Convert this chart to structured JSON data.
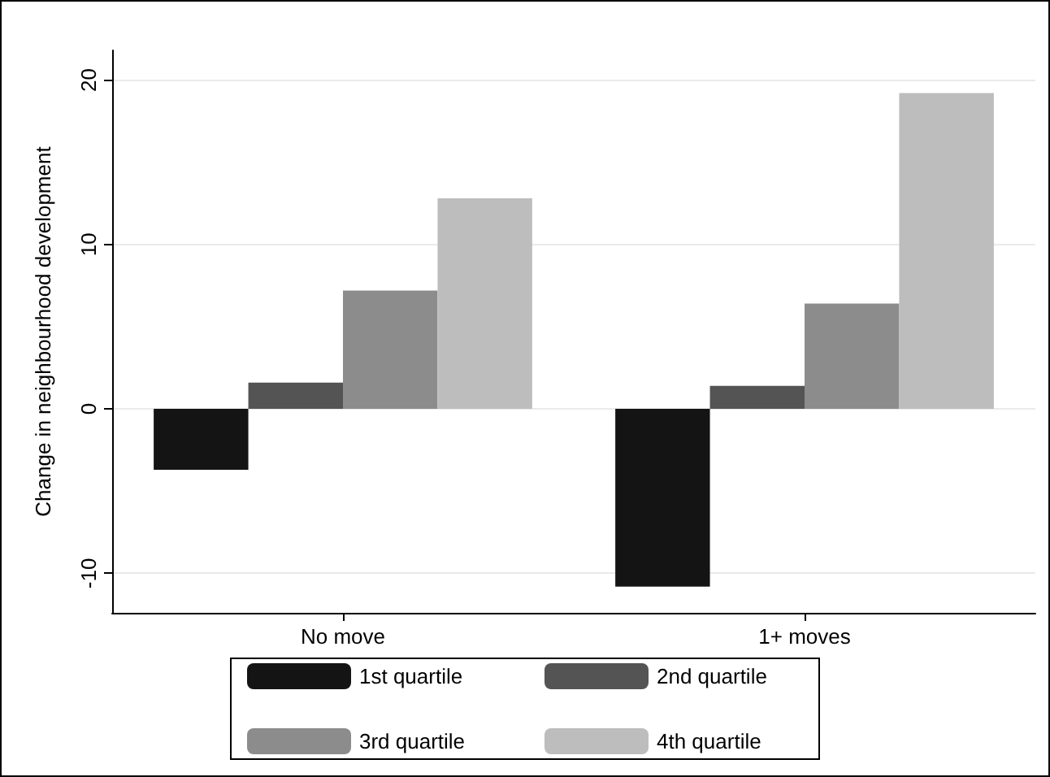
{
  "chart_data": {
    "type": "bar",
    "ylabel": "Change in neighbourhood development",
    "categories": [
      "No move",
      "1+ moves"
    ],
    "series": [
      {
        "name": "1st quartile",
        "color": "#141414",
        "values": [
          -3.7,
          -10.8
        ]
      },
      {
        "name": "2nd quartile",
        "color": "#545454",
        "values": [
          1.6,
          1.4
        ]
      },
      {
        "name": "3rd quartile",
        "color": "#8c8c8c",
        "values": [
          7.2,
          6.4
        ]
      },
      {
        "name": "4th quartile",
        "color": "#bdbdbd",
        "values": [
          12.8,
          19.2
        ]
      }
    ],
    "ylim": [
      -12.4,
      21.8
    ],
    "yticks": [
      -10,
      0,
      10,
      20
    ],
    "grid": "y",
    "legend": "bottom"
  }
}
